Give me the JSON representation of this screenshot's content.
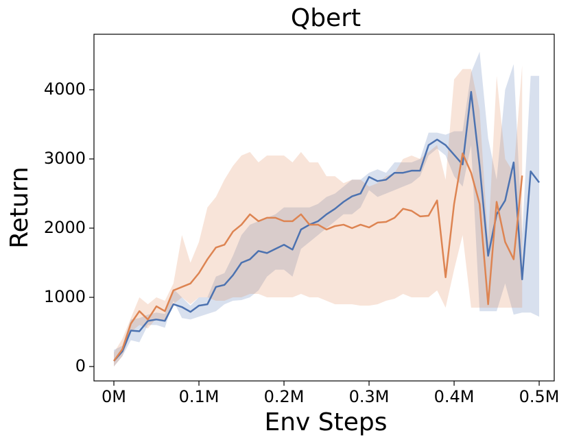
{
  "chart_data": {
    "type": "line",
    "title": "Qbert",
    "xlabel": "Env Steps",
    "ylabel": "Return",
    "x": [
      0,
      10000,
      20000,
      30000,
      40000,
      50000,
      60000,
      70000,
      80000,
      90000,
      100000,
      110000,
      120000,
      130000,
      140000,
      150000,
      160000,
      170000,
      180000,
      190000,
      200000,
      210000,
      220000,
      230000,
      240000,
      250000,
      260000,
      270000,
      280000,
      290000,
      300000,
      310000,
      320000,
      330000,
      340000,
      350000,
      360000,
      370000,
      380000,
      390000,
      400000,
      410000,
      420000,
      430000,
      440000,
      450000,
      460000,
      470000,
      480000,
      490000,
      500000
    ],
    "series": [
      {
        "color": "#4c72b0",
        "values": [
          80,
          220,
          520,
          510,
          660,
          680,
          660,
          900,
          860,
          790,
          880,
          900,
          1150,
          1180,
          1320,
          1500,
          1550,
          1670,
          1640,
          1700,
          1760,
          1690,
          1980,
          2050,
          2100,
          2200,
          2280,
          2380,
          2460,
          2500,
          2740,
          2680,
          2700,
          2800,
          2800,
          2830,
          2830,
          3200,
          3280,
          3200,
          3060,
          2920,
          3970,
          2900,
          1600,
          2200,
          2400,
          2950,
          1260,
          2820,
          2660
        ],
        "lower": [
          0,
          150,
          380,
          350,
          600,
          600,
          560,
          950,
          700,
          680,
          720,
          760,
          800,
          900,
          950,
          960,
          1000,
          1100,
          1300,
          1400,
          1400,
          1300,
          1700,
          1800,
          1900,
          2000,
          2100,
          2200,
          2200,
          2300,
          2550,
          2450,
          2500,
          2550,
          2600,
          2650,
          2750,
          3050,
          3150,
          3050,
          2750,
          2600,
          3200,
          800,
          800,
          800,
          1200,
          750,
          780,
          780,
          720
        ],
        "upper": [
          240,
          300,
          680,
          700,
          750,
          780,
          760,
          1120,
          1000,
          880,
          1000,
          1000,
          1300,
          1350,
          1600,
          1900,
          2050,
          2100,
          2150,
          2200,
          2300,
          2300,
          2300,
          2300,
          2350,
          2450,
          2500,
          2600,
          2700,
          2700,
          2800,
          2850,
          2800,
          2950,
          2950,
          2950,
          3000,
          3380,
          3380,
          3350,
          3400,
          3400,
          4250,
          4550,
          3300,
          2700,
          4000,
          4370,
          1900,
          4200,
          4200
        ]
      },
      {
        "color": "#dd8452",
        "values": [
          80,
          250,
          620,
          800,
          680,
          870,
          800,
          1100,
          1150,
          1200,
          1350,
          1550,
          1720,
          1760,
          1950,
          2050,
          2200,
          2100,
          2150,
          2150,
          2100,
          2100,
          2200,
          2050,
          2050,
          1980,
          2030,
          2050,
          2000,
          2050,
          2010,
          2080,
          2090,
          2150,
          2280,
          2250,
          2170,
          2180,
          2400,
          1290,
          2350,
          3080,
          2800,
          2350,
          900,
          2380,
          1800,
          1550,
          2760,
          null,
          null
        ],
        "lower": [
          0,
          150,
          500,
          600,
          550,
          700,
          650,
          900,
          1000,
          900,
          1000,
          1000,
          950,
          950,
          1000,
          1000,
          1050,
          1050,
          1000,
          1000,
          1000,
          1000,
          1050,
          1000,
          1000,
          950,
          900,
          900,
          900,
          880,
          880,
          900,
          950,
          980,
          1050,
          1000,
          1000,
          1000,
          1100,
          850,
          1400,
          1900,
          850,
          850,
          850,
          850,
          850,
          850,
          850,
          null,
          null
        ],
        "upper": [
          200,
          400,
          700,
          1000,
          900,
          1000,
          950,
          1200,
          1900,
          1500,
          1800,
          2300,
          2450,
          2700,
          2900,
          3050,
          3100,
          2950,
          3050,
          3050,
          3050,
          2950,
          3100,
          2950,
          2950,
          2750,
          2750,
          2650,
          2700,
          2700,
          2600,
          2650,
          2750,
          2800,
          3000,
          3050,
          3000,
          3100,
          3200,
          2700,
          4150,
          4300,
          4300,
          3700,
          1800,
          4200,
          3000,
          2800,
          4350,
          null,
          null
        ]
      }
    ],
    "xlim": [
      -23400,
      517700
    ],
    "ylim": [
      -208,
      4802
    ],
    "xticks": [
      {
        "value": 0,
        "label": "0M"
      },
      {
        "value": 100000,
        "label": "0.1M"
      },
      {
        "value": 200000,
        "label": "0.2M"
      },
      {
        "value": 300000,
        "label": "0.3M"
      },
      {
        "value": 400000,
        "label": "0.4M"
      },
      {
        "value": 500000,
        "label": "0.5M"
      }
    ],
    "yticks": [
      0,
      1000,
      2000,
      3000,
      4000
    ],
    "grid": false
  }
}
